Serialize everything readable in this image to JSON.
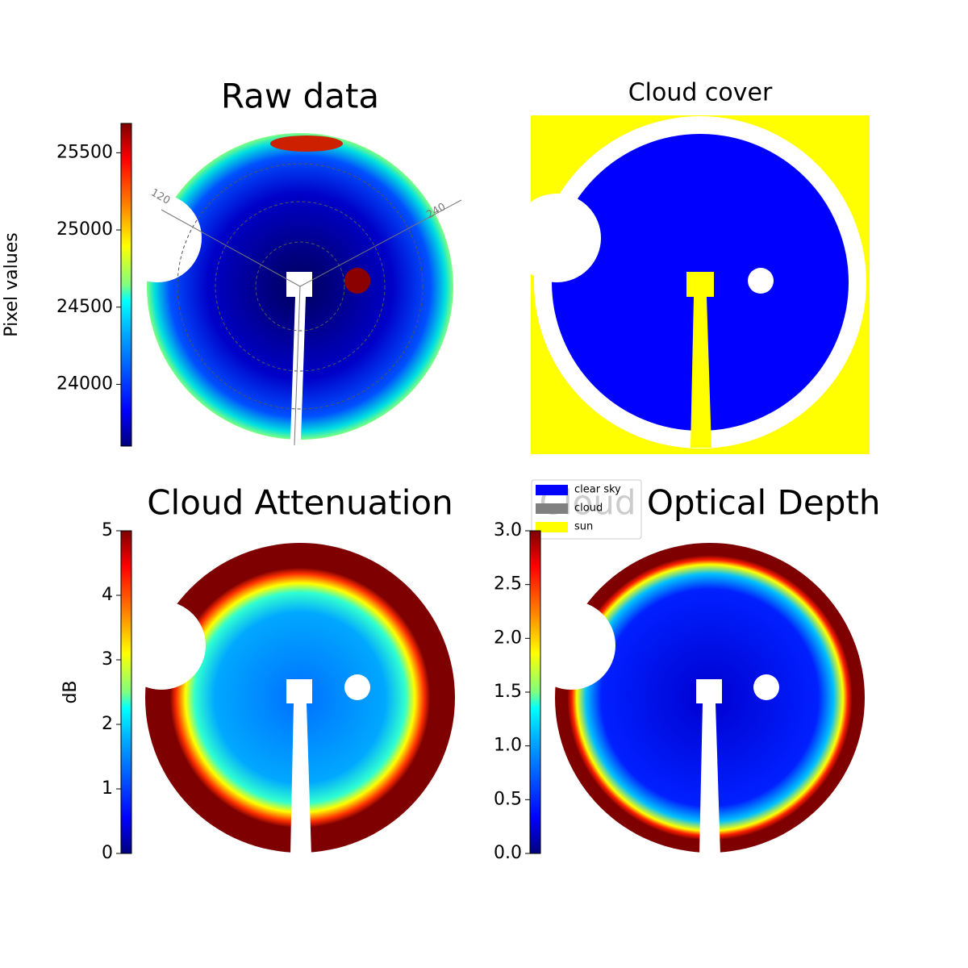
{
  "chart_data": [
    {
      "type": "image",
      "title": "Raw data",
      "colorbar": {
        "label": "Pixel values",
        "ylim": [
          23600,
          25690
        ],
        "yticks": [
          24000,
          24500,
          25000,
          25500
        ]
      },
      "polar_labels": [
        "120",
        "240"
      ]
    },
    {
      "type": "image",
      "title": "Cloud cover",
      "legend": [
        {
          "name": "clear sky",
          "color": "#0000ff"
        },
        {
          "name": "cloud",
          "color": "#808080"
        },
        {
          "name": "sun",
          "color": "#ffff00"
        }
      ]
    },
    {
      "type": "image",
      "title": "Cloud Attenuation",
      "colorbar": {
        "label": "dB",
        "ylim": [
          0,
          5
        ],
        "yticks": [
          0,
          1,
          2,
          3,
          4,
          5
        ]
      }
    },
    {
      "type": "image",
      "title": "Cloud Optical Depth",
      "colorbar": {
        "label": "",
        "ylim": [
          0,
          3
        ],
        "yticks": [
          {
            "value": 0,
            "label": "0.0"
          },
          {
            "value": 0.5,
            "label": "0.5"
          },
          {
            "value": 1,
            "label": "1.0"
          },
          {
            "value": 1.5,
            "label": "1.5"
          },
          {
            "value": 2,
            "label": "2.0"
          },
          {
            "value": 2.5,
            "label": "2.5"
          },
          {
            "value": 3,
            "label": "3.0"
          }
        ]
      }
    }
  ]
}
